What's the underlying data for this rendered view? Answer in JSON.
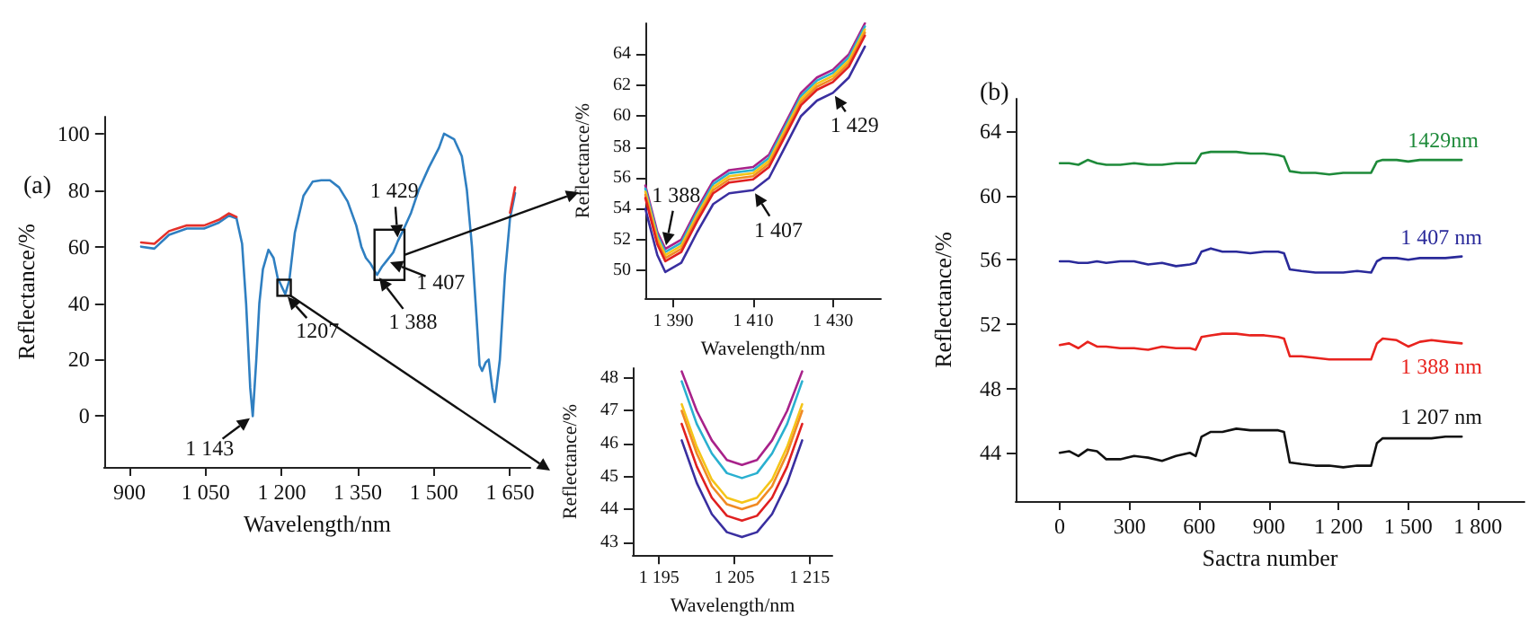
{
  "chart_data": [
    {
      "type": "line",
      "title": "(a)",
      "xlabel": "Wavelength/nm",
      "ylabel": "Reflectance/%",
      "marker": "none",
      "line_style": "solid",
      "x": [
        923,
        949,
        978,
        1013,
        1047,
        1076,
        1096,
        1111,
        1122,
        1130,
        1138,
        1143,
        1150,
        1156,
        1163,
        1174,
        1184,
        1192,
        1207,
        1215,
        1226,
        1243,
        1261,
        1278,
        1295,
        1313,
        1330,
        1347,
        1357,
        1366,
        1375,
        1388,
        1398,
        1407,
        1420,
        1429,
        1440,
        1455,
        1470,
        1490,
        1510,
        1520,
        1540,
        1555,
        1565,
        1575,
        1584,
        1590,
        1595,
        1602,
        1608,
        1615,
        1620,
        1630,
        1640,
        1650,
        1660
      ],
      "series": [
        {
          "color": "#2f7fc1",
          "values": [
            60,
            59.3,
            64.2,
            66.4,
            66.4,
            68.5,
            71,
            70,
            61,
            39.6,
            10,
            0,
            20,
            40,
            52,
            58.9,
            56,
            49,
            43.2,
            48,
            65,
            78,
            83,
            83.5,
            83.5,
            81,
            76,
            67.5,
            60,
            56,
            54,
            50,
            53,
            55,
            58,
            62,
            66,
            72,
            80,
            88,
            95,
            100,
            98,
            92,
            80,
            60,
            35,
            18,
            16,
            19,
            20,
            10,
            5,
            20,
            50,
            70,
            79
          ]
        },
        {
          "color": "#e4312b",
          "values": [
            61.5,
            61,
            65.5,
            67.5,
            67.5,
            69.5,
            71.8,
            70.5,
            null,
            null,
            null,
            null,
            null,
            null,
            null,
            null,
            null,
            null,
            null,
            null,
            null,
            null,
            null,
            null,
            null,
            null,
            null,
            null,
            null,
            null,
            null,
            null,
            null,
            null,
            null,
            null,
            null,
            null,
            null,
            null,
            null,
            null,
            null,
            null,
            null,
            null,
            null,
            null,
            null,
            null,
            null,
            null,
            null,
            null,
            null,
            72,
            81
          ]
        }
      ],
      "xlim": [
        850,
        1690
      ],
      "ylim": [
        -18,
        106
      ],
      "xticks": [
        900,
        {
          "value": 1050,
          "label": "1 050"
        },
        {
          "value": 1200,
          "label": "1 200"
        },
        {
          "value": 1350,
          "label": "1 350"
        },
        {
          "value": 1500,
          "label": "1 500"
        },
        {
          "value": 1650,
          "label": "1 650"
        }
      ],
      "yticks": [
        0,
        20,
        40,
        60,
        80,
        100
      ],
      "annotations": [
        {
          "text": "1 143",
          "x": 1143,
          "y": 0
        },
        {
          "text": "1207",
          "x": 1207,
          "y": 43.2
        },
        {
          "text": "1 388",
          "x": 1388,
          "y": 50
        },
        {
          "text": "1 407",
          "x": 1407,
          "y": 55
        },
        {
          "text": "1 429",
          "x": 1429,
          "y": 62
        }
      ]
    },
    {
      "type": "line",
      "xlabel": "Wavelength/nm",
      "ylabel": "Reflectance/%",
      "marker": "none",
      "line_style": "solid",
      "x": [
        1383,
        1386,
        1388,
        1392,
        1396,
        1400,
        1404,
        1410,
        1414,
        1418,
        1422,
        1426,
        1430,
        1434,
        1438
      ],
      "series": [
        {
          "color": "#a8228a",
          "values": [
            55.5,
            52.5,
            51.4,
            52,
            54,
            55.8,
            56.5,
            56.7,
            57.5,
            59.5,
            61.5,
            62.5,
            63,
            64,
            66
          ]
        },
        {
          "color": "#2ab0d0",
          "values": [
            55.3,
            52.3,
            51.2,
            51.8,
            53.8,
            55.6,
            56.3,
            56.5,
            57.3,
            59.3,
            61.3,
            62.3,
            62.8,
            63.8,
            65.8
          ]
        },
        {
          "color": "#f5c518",
          "values": [
            55.1,
            52.1,
            51.0,
            51.6,
            53.6,
            55.4,
            56.1,
            56.3,
            57.1,
            59.1,
            61.1,
            62.1,
            62.6,
            63.6,
            65.6
          ]
        },
        {
          "color": "#f08a24",
          "values": [
            54.9,
            51.9,
            50.8,
            51.4,
            53.4,
            55.2,
            55.9,
            56.1,
            56.9,
            58.9,
            60.9,
            61.9,
            62.4,
            63.4,
            65.4
          ]
        },
        {
          "color": "#e02020",
          "values": [
            54.7,
            51.7,
            50.6,
            51.2,
            53.2,
            55.0,
            55.7,
            55.9,
            56.7,
            58.7,
            60.7,
            61.7,
            62.2,
            63.2,
            65.2
          ]
        },
        {
          "color": "#3a2fa0",
          "values": [
            54.0,
            51.0,
            49.9,
            50.5,
            52.5,
            54.3,
            55.0,
            55.2,
            56.0,
            58.0,
            60.0,
            61.0,
            61.5,
            62.5,
            64.5
          ]
        }
      ],
      "xlim": [
        1383,
        1442
      ],
      "ylim": [
        48.2,
        66
      ],
      "xticks": [
        {
          "value": 1390,
          "label": "1 390"
        },
        {
          "value": 1410,
          "label": "1 410"
        },
        {
          "value": 1430,
          "label": "1 430"
        }
      ],
      "yticks": [
        50,
        52,
        54,
        56,
        58,
        60,
        62,
        64
      ],
      "annotations": [
        {
          "text": "1 388",
          "x": 1388,
          "y": 51.4
        },
        {
          "text": "1 407",
          "x": 1410,
          "y": 55.2
        },
        {
          "text": "1 429",
          "x": 1430,
          "y": 61.5
        }
      ]
    },
    {
      "type": "line",
      "xlabel": "Wavelength/nm",
      "ylabel": "Reflectance/%",
      "marker": "none",
      "line_style": "solid",
      "x": [
        1198,
        1200,
        1202,
        1204,
        1206,
        1208,
        1210,
        1212,
        1214
      ],
      "series": [
        {
          "color": "#a8228a",
          "values": [
            48.2,
            47.0,
            46.1,
            45.5,
            45.35,
            45.5,
            46.1,
            47.0,
            48.2
          ]
        },
        {
          "color": "#2ab0d0",
          "values": [
            47.9,
            46.6,
            45.7,
            45.1,
            44.95,
            45.1,
            45.7,
            46.6,
            47.9
          ]
        },
        {
          "color": "#f5c518",
          "values": [
            47.2,
            45.9,
            44.9,
            44.35,
            44.2,
            44.35,
            44.9,
            45.9,
            47.2
          ]
        },
        {
          "color": "#f08a24",
          "values": [
            47.0,
            45.7,
            44.7,
            44.15,
            44.0,
            44.15,
            44.7,
            45.7,
            47.0
          ]
        },
        {
          "color": "#e02020",
          "values": [
            46.6,
            45.3,
            44.35,
            43.8,
            43.65,
            43.8,
            44.35,
            45.3,
            46.6
          ]
        },
        {
          "color": "#3a2fa0",
          "values": [
            46.1,
            44.8,
            43.85,
            43.3,
            43.15,
            43.3,
            43.85,
            44.8,
            46.1
          ]
        }
      ],
      "xlim": [
        1191.5,
        1218
      ],
      "ylim": [
        42.6,
        48.3
      ],
      "xticks": [
        {
          "value": 1195,
          "label": "1 195"
        },
        {
          "value": 1205,
          "label": "1 205"
        },
        {
          "value": 1215,
          "label": "1 215"
        }
      ],
      "yticks": [
        43,
        44,
        45,
        46,
        47,
        48
      ]
    },
    {
      "type": "line",
      "title": "(b)",
      "xlabel": "Sactra number",
      "ylabel": "Reflectance/%",
      "marker": "none",
      "line_style": "solid",
      "x": [
        0,
        40,
        80,
        120,
        160,
        200,
        260,
        320,
        380,
        440,
        500,
        560,
        585,
        610,
        650,
        700,
        760,
        820,
        880,
        940,
        965,
        990,
        1040,
        1100,
        1160,
        1220,
        1280,
        1340,
        1365,
        1390,
        1450,
        1500,
        1550,
        1600,
        1660,
        1730
      ],
      "series": [
        {
          "name": "1429nm",
          "color": "#1e8a3a",
          "values": [
            62.0,
            62.0,
            61.9,
            62.2,
            62.0,
            61.9,
            61.9,
            62.0,
            61.9,
            61.9,
            62.0,
            62.0,
            62.0,
            62.6,
            62.7,
            62.7,
            62.7,
            62.6,
            62.6,
            62.5,
            62.4,
            61.5,
            61.4,
            61.4,
            61.3,
            61.4,
            61.4,
            61.4,
            62.1,
            62.2,
            62.2,
            62.1,
            62.2,
            62.2,
            62.2,
            62.2
          ]
        },
        {
          "name": "1 407 nm",
          "color": "#2a2a9a",
          "values": [
            55.9,
            55.9,
            55.8,
            55.8,
            55.9,
            55.8,
            55.9,
            55.9,
            55.7,
            55.8,
            55.6,
            55.7,
            55.8,
            56.5,
            56.7,
            56.5,
            56.5,
            56.4,
            56.5,
            56.5,
            56.4,
            55.4,
            55.3,
            55.2,
            55.2,
            55.2,
            55.3,
            55.2,
            55.9,
            56.1,
            56.1,
            56.0,
            56.1,
            56.1,
            56.1,
            56.2
          ]
        },
        {
          "name": "1 388 nm",
          "color": "#e8231e",
          "values": [
            50.7,
            50.8,
            50.5,
            50.9,
            50.6,
            50.6,
            50.5,
            50.5,
            50.4,
            50.6,
            50.5,
            50.5,
            50.4,
            51.2,
            51.3,
            51.4,
            51.4,
            51.3,
            51.3,
            51.2,
            51.1,
            50.0,
            50.0,
            49.9,
            49.8,
            49.8,
            49.8,
            49.8,
            50.8,
            51.1,
            51.0,
            50.6,
            50.9,
            51.0,
            50.9,
            50.8
          ]
        },
        {
          "name": "1 207 nm",
          "color": "#111111",
          "values": [
            44.0,
            44.1,
            43.8,
            44.2,
            44.1,
            43.6,
            43.6,
            43.8,
            43.7,
            43.5,
            43.8,
            44.0,
            43.8,
            45.0,
            45.3,
            45.3,
            45.5,
            45.4,
            45.4,
            45.4,
            45.3,
            43.4,
            43.3,
            43.2,
            43.2,
            43.1,
            43.2,
            43.2,
            44.6,
            44.9,
            44.9,
            44.9,
            44.9,
            44.9,
            45.0,
            45.0
          ]
        }
      ],
      "xlim": [
        -190,
        2000
      ],
      "ylim": [
        41,
        66
      ],
      "xticks": [
        0,
        300,
        600,
        900,
        {
          "value": 1200,
          "label": "1 200"
        },
        {
          "value": 1500,
          "label": "1 500"
        },
        {
          "value": 1800,
          "label": "1 800"
        }
      ],
      "yticks": [
        44,
        48,
        52,
        56,
        60,
        64
      ]
    }
  ]
}
